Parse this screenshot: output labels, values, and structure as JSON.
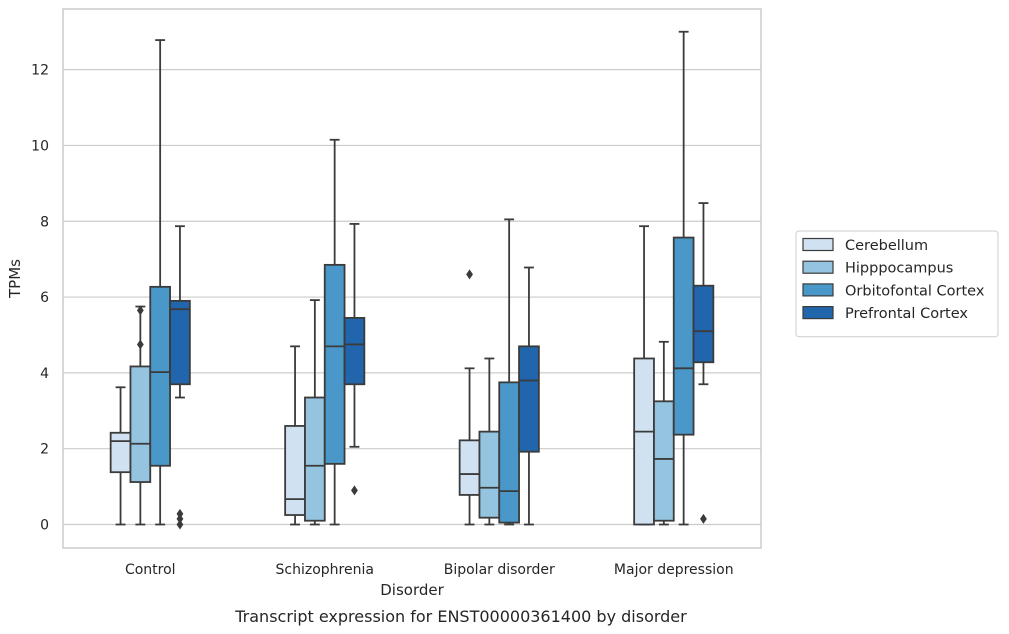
{
  "chart_data": {
    "type": "box",
    "xlabel": "Disorder",
    "ylabel": "TPMs",
    "caption": "Transcript expression for ENST00000361400 by disorder",
    "categories": [
      "Control",
      "Schizophrenia",
      "Bipolar disorder",
      "Major depression"
    ],
    "yticks": [
      0,
      2,
      4,
      6,
      8,
      10,
      12
    ],
    "ylim": [
      -0.62,
      13.6
    ],
    "grid": "horizontal",
    "legend_position": "right",
    "series": [
      {
        "name": "Cerebellum",
        "color": "#d0e1f2",
        "boxes": [
          {
            "whislo": 0.0,
            "q1": 1.38,
            "med": 2.2,
            "q3": 2.42,
            "whishi": 3.62,
            "fliers": []
          },
          {
            "whislo": 0.0,
            "q1": 0.25,
            "med": 0.67,
            "q3": 2.6,
            "whishi": 4.7,
            "fliers": []
          },
          {
            "whislo": 0.0,
            "q1": 0.78,
            "med": 1.33,
            "q3": 2.22,
            "whishi": 4.12,
            "fliers": [
              6.6
            ]
          },
          {
            "whislo": 0.0,
            "q1": 0.0,
            "med": 2.45,
            "q3": 4.38,
            "whishi": 7.87,
            "fliers": []
          }
        ]
      },
      {
        "name": "Hipppocampus",
        "color": "#94c4df",
        "boxes": [
          {
            "whislo": 0.0,
            "q1": 1.12,
            "med": 2.13,
            "q3": 4.17,
            "whishi": 5.75,
            "fliers": [
              4.75,
              5.65
            ]
          },
          {
            "whislo": 0.0,
            "q1": 0.1,
            "med": 1.55,
            "q3": 3.35,
            "whishi": 5.92,
            "fliers": []
          },
          {
            "whislo": 0.0,
            "q1": 0.18,
            "med": 0.97,
            "q3": 2.45,
            "whishi": 4.38,
            "fliers": []
          },
          {
            "whislo": 0.0,
            "q1": 0.1,
            "med": 1.73,
            "q3": 3.25,
            "whishi": 4.82,
            "fliers": []
          }
        ]
      },
      {
        "name": "Orbitofontal Cortex",
        "color": "#4a98c9",
        "boxes": [
          {
            "whislo": 0.0,
            "q1": 1.55,
            "med": 4.02,
            "q3": 6.27,
            "whishi": 12.78,
            "fliers": []
          },
          {
            "whislo": 0.0,
            "q1": 1.6,
            "med": 4.7,
            "q3": 6.85,
            "whishi": 10.15,
            "fliers": []
          },
          {
            "whislo": 0.0,
            "q1": 0.05,
            "med": 0.88,
            "q3": 3.75,
            "whishi": 8.05,
            "fliers": []
          },
          {
            "whislo": 0.0,
            "q1": 2.37,
            "med": 4.12,
            "q3": 7.57,
            "whishi": 13.0,
            "fliers": []
          }
        ]
      },
      {
        "name": "Prefrontal Cortex",
        "color": "#2166ac",
        "boxes": [
          {
            "whislo": 3.35,
            "q1": 3.7,
            "med": 5.68,
            "q3": 5.9,
            "whishi": 7.87,
            "fliers": [
              0.0,
              0.15,
              0.28
            ]
          },
          {
            "whislo": 2.05,
            "q1": 3.7,
            "med": 4.75,
            "q3": 5.45,
            "whishi": 7.93,
            "fliers": [
              0.9
            ]
          },
          {
            "whislo": 0.0,
            "q1": 1.92,
            "med": 3.8,
            "q3": 4.7,
            "whishi": 6.78,
            "fliers": []
          },
          {
            "whislo": 3.7,
            "q1": 4.28,
            "med": 5.1,
            "q3": 6.3,
            "whishi": 8.48,
            "fliers": [
              0.15
            ]
          }
        ]
      }
    ]
  }
}
